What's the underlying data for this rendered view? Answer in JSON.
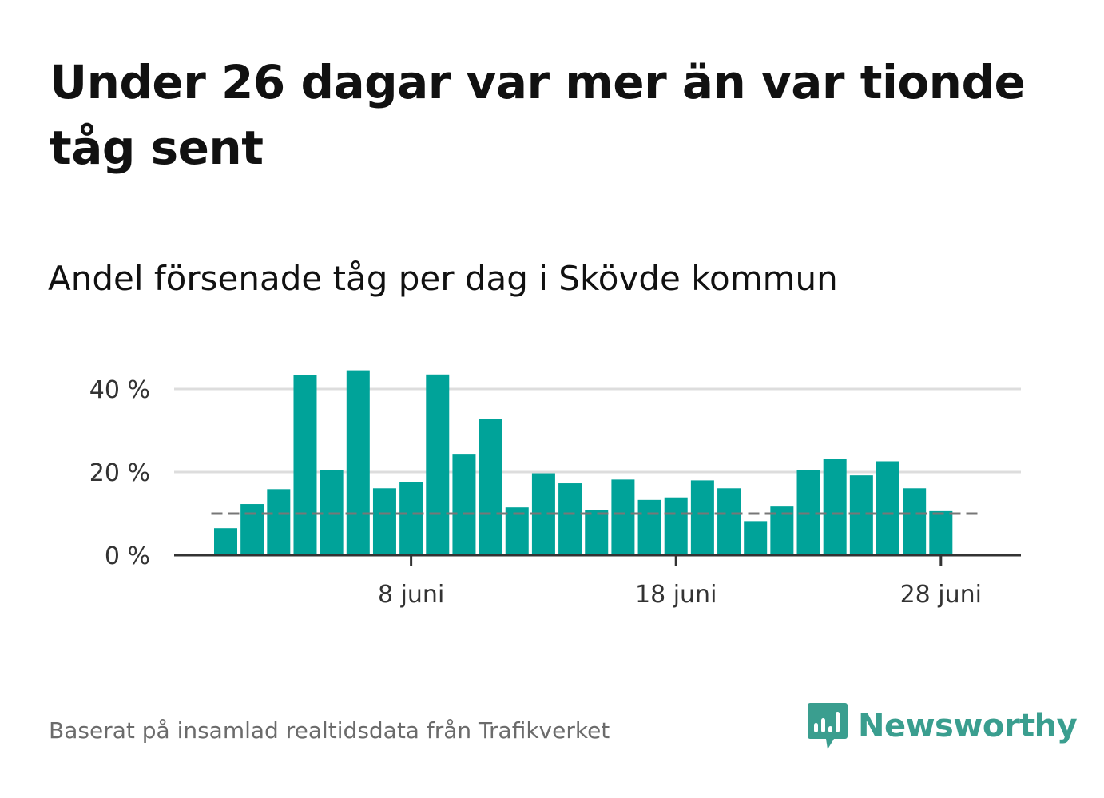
{
  "title": "Under 26 dagar var mer än var tionde tåg sent",
  "subtitle": "Andel försenade tåg per dag i Skövde kommun",
  "source": "Baserat på insamlad realtidsdata från Trafikverket",
  "brand": {
    "name": "Newsworthy",
    "color": "#3a9e8f",
    "icon": "bar-chart-speech-bubble-icon"
  },
  "colors": {
    "bar": "#00a399",
    "grid": "#dddddd",
    "axis": "#333333",
    "reference": "#777777"
  },
  "chart_data": {
    "type": "bar",
    "x": [
      "2023-06-01",
      "2023-06-02",
      "2023-06-03",
      "2023-06-04",
      "2023-06-05",
      "2023-06-06",
      "2023-06-07",
      "2023-06-08",
      "2023-06-09",
      "2023-06-10",
      "2023-06-11",
      "2023-06-12",
      "2023-06-13",
      "2023-06-14",
      "2023-06-15",
      "2023-06-16",
      "2023-06-17",
      "2023-06-18",
      "2023-06-19",
      "2023-06-20",
      "2023-06-21",
      "2023-06-22",
      "2023-06-23",
      "2023-06-24",
      "2023-06-25",
      "2023-06-26",
      "2023-06-27",
      "2023-06-28"
    ],
    "values": [
      6.5,
      12.3,
      15.9,
      43.3,
      20.5,
      44.5,
      16.1,
      17.6,
      43.5,
      24.4,
      32.7,
      11.5,
      19.7,
      17.3,
      10.9,
      18.2,
      13.3,
      13.9,
      18.0,
      16.1,
      8.2,
      11.7,
      20.5,
      23.1,
      19.2,
      22.6,
      16.1,
      10.6
    ],
    "ylim": [
      0,
      48
    ],
    "yticks": [
      0,
      20,
      40
    ],
    "ytick_labels": [
      "0 %",
      "20 %",
      "40 %"
    ],
    "xticks": [
      "8 juni",
      "18 juni",
      "28 juni"
    ],
    "xtick_dates": [
      "2023-06-08",
      "2023-06-18",
      "2023-06-28"
    ],
    "reference_line": 10,
    "grid": true,
    "xlabel": "",
    "ylabel": ""
  }
}
